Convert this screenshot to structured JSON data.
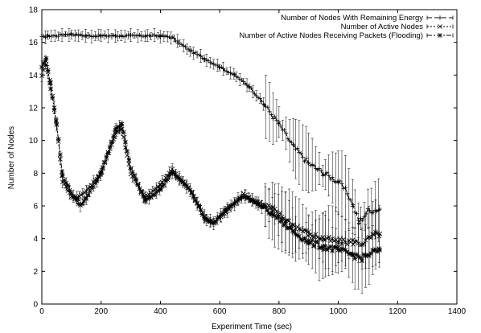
{
  "chart_data": {
    "type": "line",
    "title": "",
    "xlabel": "Experiment Time (sec)",
    "ylabel": "Number of Nodes",
    "xlim": [
      0,
      1400
    ],
    "ylim": [
      0,
      18
    ],
    "xticks": [
      0,
      200,
      400,
      600,
      800,
      1000,
      1200,
      1400
    ],
    "yticks": [
      0,
      2,
      4,
      6,
      8,
      10,
      12,
      14,
      16,
      18
    ],
    "grid": false,
    "legend_position": "top-right",
    "error_bars": true,
    "colors": {
      "line": "#000000",
      "background": "#ffffff"
    },
    "series": [
      {
        "name": "Number of Nodes With Remaining Energy",
        "marker": "plus",
        "dash": "6,3",
        "x": [
          0,
          20,
          50,
          80,
          100,
          150,
          200,
          250,
          300,
          350,
          400,
          440,
          460,
          500,
          550,
          600,
          650,
          700,
          750,
          800,
          850,
          900,
          950,
          1000,
          1030,
          1050,
          1070,
          1100,
          1140
        ],
        "y": [
          16.3,
          16.4,
          16.4,
          16.5,
          16.5,
          16.4,
          16.4,
          16.4,
          16.4,
          16.4,
          16.4,
          16.3,
          16.0,
          15.5,
          15.0,
          14.5,
          14.0,
          13.3,
          12.2,
          11.0,
          9.6,
          8.6,
          8.0,
          7.5,
          6.8,
          6.0,
          5.0,
          5.7,
          5.8
        ]
      },
      {
        "name": "Number of Active Nodes",
        "marker": "cross",
        "dash": "2,2",
        "x": [
          0,
          15,
          30,
          50,
          70,
          100,
          120,
          150,
          200,
          250,
          270,
          300,
          350,
          400,
          440,
          500,
          550,
          580,
          620,
          680,
          730,
          780,
          850,
          900,
          950,
          1000,
          1050,
          1080,
          1120,
          1140
        ],
        "y": [
          14.0,
          14.7,
          13.5,
          11.0,
          7.5,
          6.6,
          6.5,
          6.9,
          8.0,
          10.5,
          10.7,
          8.0,
          6.5,
          7.3,
          8.2,
          7.0,
          5.3,
          5.0,
          5.6,
          6.7,
          6.2,
          5.8,
          4.8,
          4.3,
          4.0,
          3.8,
          3.8,
          3.7,
          4.2,
          4.3
        ]
      },
      {
        "name": "Number of Active Nodes Receiving Packets (Flooding)",
        "marker": "star",
        "dash": "6,2,2,2",
        "x": [
          0,
          15,
          30,
          50,
          70,
          100,
          130,
          150,
          200,
          250,
          270,
          300,
          350,
          400,
          440,
          500,
          550,
          580,
          620,
          680,
          730,
          780,
          850,
          900,
          950,
          1000,
          1050,
          1080,
          1120,
          1140
        ],
        "y": [
          14.5,
          15.0,
          13.2,
          11.0,
          7.8,
          6.8,
          6.0,
          6.5,
          8.0,
          10.7,
          11.0,
          8.3,
          6.3,
          7.0,
          8.1,
          7.0,
          5.2,
          4.9,
          5.8,
          6.6,
          6.1,
          5.5,
          4.4,
          3.8,
          3.5,
          3.3,
          3.0,
          2.8,
          3.2,
          3.3
        ]
      }
    ]
  }
}
